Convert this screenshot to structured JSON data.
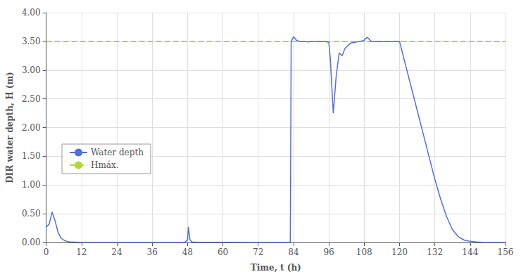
{
  "chart_data": {
    "type": "line",
    "xlabel": "Time, t (h)",
    "ylabel": "DIR water depth, H (m)",
    "xlim": [
      0,
      156
    ],
    "ylim": [
      0.0,
      4.0
    ],
    "xticks": [
      0,
      12,
      24,
      36,
      48,
      60,
      72,
      84,
      96,
      108,
      120,
      132,
      144,
      156
    ],
    "yticks": [
      {
        "value": 0.0,
        "label": "0.00"
      },
      {
        "value": 0.5,
        "label": "0.50"
      },
      {
        "value": 1.0,
        "label": "1.00"
      },
      {
        "value": 1.5,
        "label": "1.50"
      },
      {
        "value": 2.0,
        "label": "2.00"
      },
      {
        "value": 2.5,
        "label": "2.50"
      },
      {
        "value": 3.0,
        "label": "3.00"
      },
      {
        "value": 3.5,
        "label": "3.50"
      },
      {
        "value": 4.0,
        "label": "4.00"
      }
    ],
    "grid": true,
    "legend": "lower left",
    "series": [
      {
        "name": "Water depth",
        "type": "line",
        "line_style": "solid",
        "x": [
          0,
          1,
          2,
          3,
          4,
          5,
          6,
          7,
          8,
          10,
          12,
          24,
          36,
          47,
          48.0,
          48.3,
          48.8,
          49.5,
          51,
          60,
          72,
          82.9,
          83.0,
          83.2,
          84,
          85,
          86,
          87,
          88,
          89,
          90,
          91,
          92,
          93,
          94,
          95,
          95.5,
          96.0,
          96.5,
          97.5,
          98.5,
          99.5,
          100.5,
          101.5,
          102.5,
          103.5,
          104.5,
          105.5,
          106.5,
          107.5,
          108.0,
          108.5,
          109.0,
          109.5,
          110.0,
          110.5,
          111,
          115,
          120,
          121,
          122,
          124,
          126,
          128,
          130,
          132,
          134,
          136,
          138,
          140,
          142,
          144,
          146,
          148,
          156
        ],
        "values": [
          0.27,
          0.32,
          0.53,
          0.38,
          0.18,
          0.08,
          0.04,
          0.02,
          0.01,
          0.005,
          0.003,
          0.001,
          0.001,
          0.001,
          0.04,
          0.27,
          0.05,
          0.01,
          0.003,
          0.002,
          0.001,
          0.001,
          0.93,
          3.5,
          3.58,
          3.52,
          3.5,
          3.5,
          3.5,
          3.49,
          3.5,
          3.5,
          3.5,
          3.5,
          3.5,
          3.5,
          3.49,
          3.48,
          3.2,
          2.25,
          2.9,
          3.3,
          3.25,
          3.38,
          3.43,
          3.47,
          3.48,
          3.49,
          3.5,
          3.51,
          3.52,
          3.55,
          3.57,
          3.55,
          3.52,
          3.5,
          3.5,
          3.5,
          3.5,
          3.3,
          3.1,
          2.7,
          2.3,
          1.9,
          1.5,
          1.1,
          0.75,
          0.45,
          0.22,
          0.1,
          0.04,
          0.02,
          0.01,
          0.003,
          0.001
        ]
      },
      {
        "name": "Hmáx.",
        "type": "hline",
        "line_style": "dashed",
        "values": [
          3.5
        ]
      }
    ]
  }
}
